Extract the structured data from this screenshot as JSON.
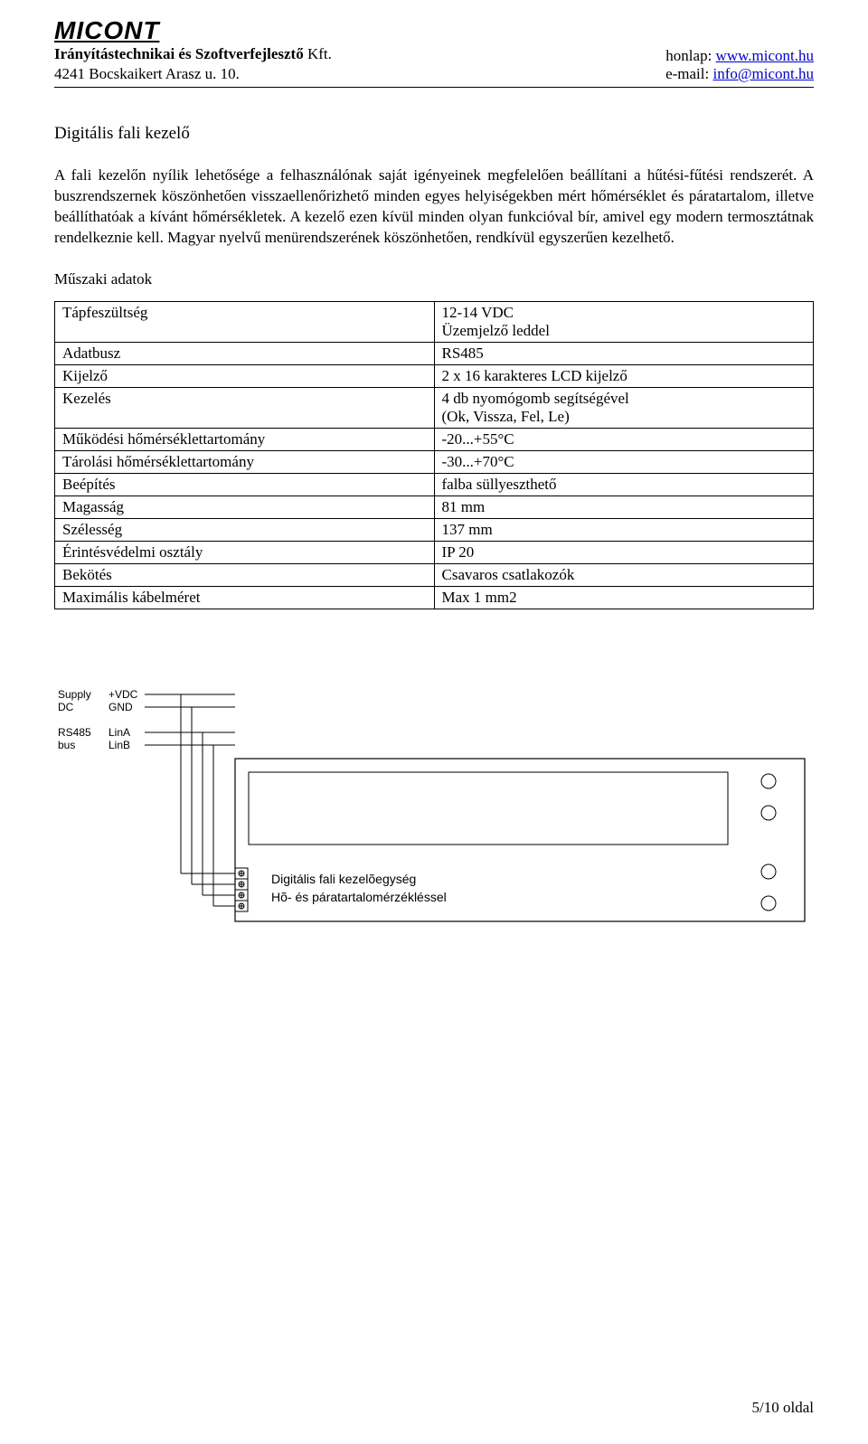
{
  "header": {
    "logo": "MICONT",
    "company_name_bold": "Irányítástechnikai és Szoftverfejlesztő",
    "company_suffix": " Kft.",
    "address": "4241 Bocskaikert Arasz u. 10.",
    "website_label": "honlap: ",
    "website_url": "www.micont.hu",
    "email_label": "e-mail: ",
    "email": "info@micont.hu"
  },
  "section": {
    "title": "Digitális fali kezelő",
    "paragraph": "A fali kezelőn nyílik lehetősége a felhasználónak saját igényeinek megfelelően beállítani a hűtési-fűtési rendszerét. A buszrendszernek köszönhetően visszaellenőrizhető minden egyes helyiségekben mért hőmérséklet és páratartalom, illetve beállíthatóak a kívánt hőmérsékletek. A kezelő ezen kívül minden olyan funkcióval bír, amivel egy modern termosztátnak rendelkeznie kell. Magyar nyelvű menürendszerének köszönhetően, rendkívül egyszerűen kezelhető.",
    "subhead": "Műszaki adatok"
  },
  "table": {
    "rows": [
      {
        "label": "Tápfeszültség",
        "value": "12-14 VDC\nÜzemjelző leddel"
      },
      {
        "label": "Adatbusz",
        "value": "RS485"
      },
      {
        "label": "Kijelző",
        "value": "2 x 16 karakteres LCD kijelző"
      },
      {
        "label": "Kezelés",
        "value": "4 db nyomógomb segítségével\n(Ok, Vissza, Fel, Le)"
      },
      {
        "label": "Működési hőmérséklettartomány",
        "value": "-20...+55°C"
      },
      {
        "label": "Tárolási hőmérséklettartomány",
        "value": "-30...+70°C"
      },
      {
        "label": "Beépítés",
        "value": "falba süllyeszthető"
      },
      {
        "label": "Magasság",
        "value": "81 mm"
      },
      {
        "label": "Szélesség",
        "value": "137 mm"
      },
      {
        "label": "Érintésvédelmi osztály",
        "value": "IP 20"
      },
      {
        "label": "Bekötés",
        "value": "Csavaros csatlakozók"
      },
      {
        "label": "Maximális kábelméret",
        "value": "Max 1 mm2"
      }
    ]
  },
  "diagram": {
    "supply_label1": "Supply",
    "supply_label2": "DC",
    "vdc": "+VDC",
    "gnd": "GND",
    "rs485_1": "RS485",
    "rs485_2": "bus",
    "lina": "LinA",
    "linb": "LinB",
    "device_line1": "Digitális fali kezelõegység",
    "device_line2": "Hõ- és páratartalomérzékléssel",
    "colors": {
      "stroke": "#000000",
      "fill_none": "none",
      "bg": "#ffffff"
    }
  },
  "footer": {
    "page": "5/10 oldal"
  }
}
